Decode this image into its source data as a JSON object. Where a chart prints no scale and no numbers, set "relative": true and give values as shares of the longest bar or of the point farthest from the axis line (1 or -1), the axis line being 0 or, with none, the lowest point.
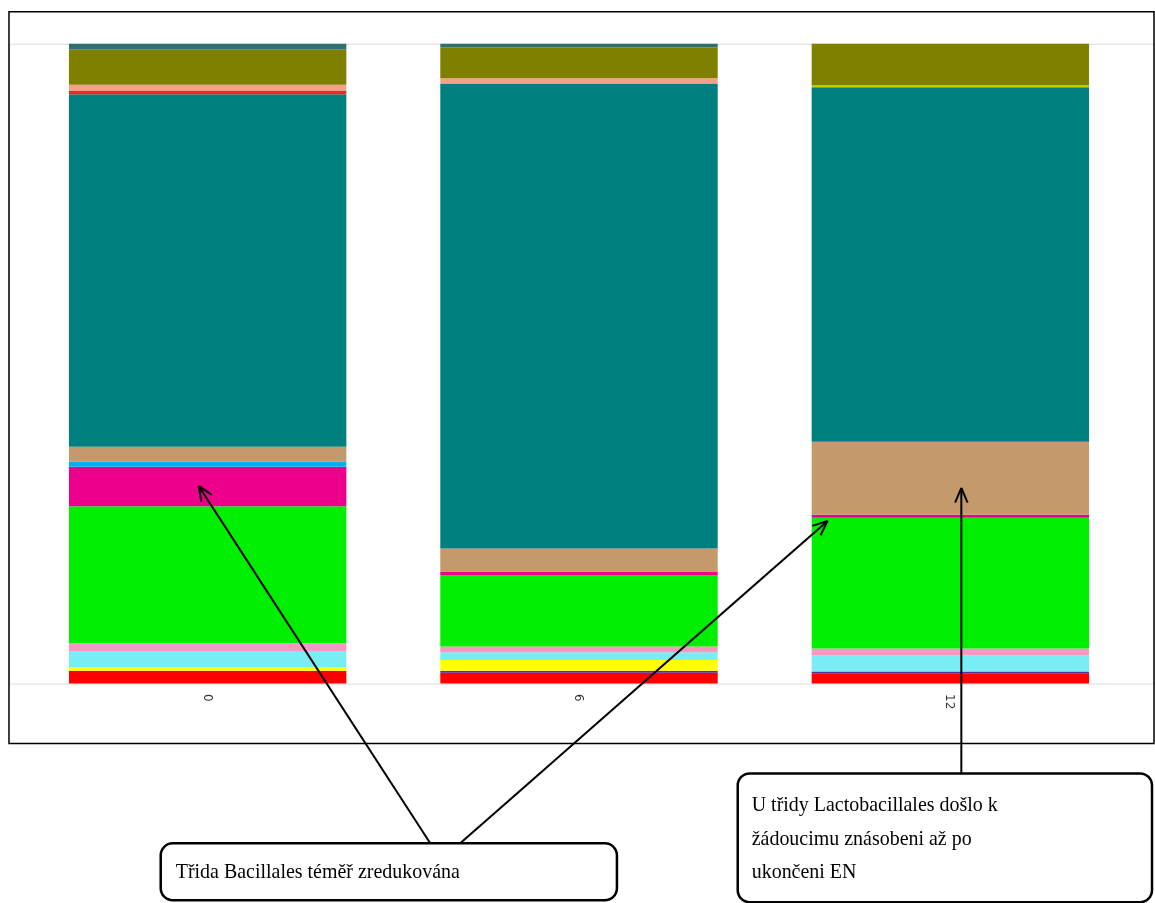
{
  "chart_data": {
    "type": "bar",
    "stacked": true,
    "relative": true,
    "legend": false,
    "categories": [
      "0",
      "6",
      "12"
    ],
    "series": [
      {
        "color": "#ff0000",
        "values": [
          0.02,
          0.017,
          0.016
        ]
      },
      {
        "color": "#5a2d9a",
        "values": [
          null,
          0.003,
          0.003
        ]
      },
      {
        "color": "#ffff00",
        "values": [
          0.006,
          0.017,
          null
        ]
      },
      {
        "color": "#78eef4",
        "values": [
          0.025,
          0.012,
          0.025
        ]
      },
      {
        "color": "#f49ac1",
        "values": [
          0.012,
          0.009,
          0.011
        ]
      },
      {
        "color": "#00ee00",
        "values": [
          0.214,
          0.111,
          0.204
        ]
      },
      {
        "color": "#ec008c",
        "values": [
          0.062,
          0.006,
          0.005
        ]
      },
      {
        "color": "#00b0f0",
        "values": [
          0.008,
          null,
          null
        ]
      },
      {
        "color": "#c49a6c",
        "values": [
          0.023,
          0.036,
          0.114
        ]
      },
      {
        "color": "#007f7f",
        "values": [
          0.551,
          0.727,
          0.554
        ]
      },
      {
        "color": "#ee2a24",
        "values": [
          0.006,
          null,
          null
        ]
      },
      {
        "color": "#f5a08a",
        "values": [
          0.009,
          0.008,
          null
        ]
      },
      {
        "color": "#c8c800",
        "values": [
          null,
          null,
          0.003
        ]
      },
      {
        "color": "#808000",
        "values": [
          0.055,
          0.048,
          0.065
        ]
      },
      {
        "color": "#2f6f6f",
        "values": [
          0.009,
          0.006,
          null
        ]
      }
    ],
    "annotations": [
      "Třida Bacillales  téměř zredukována",
      "U třidy Lactobacillales  došlo k žádoucimu znásobeni až po ukončeni EN"
    ]
  }
}
